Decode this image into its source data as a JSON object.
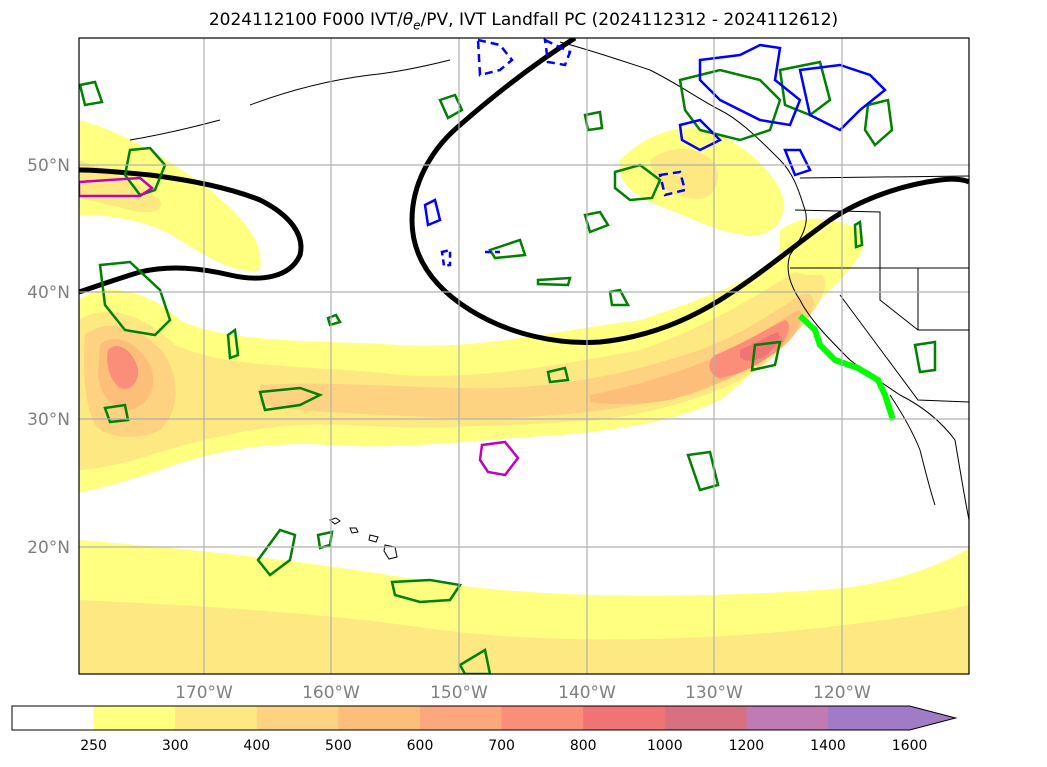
{
  "title": {
    "prefix": "2024112100 F000 IVT/",
    "theta": "θ",
    "theta_sub": "e",
    "suffix": "/PV, IVT Landfall PC (2024112312 - 2024112612)"
  },
  "map": {
    "region": "North-East Pacific",
    "lon_labels": [
      "170°W",
      "160°W",
      "150°W",
      "140°W",
      "130°W",
      "120°W"
    ],
    "lat_labels": [
      "50°N",
      "40°N",
      "30°N",
      "20°N"
    ],
    "gridlines": true
  },
  "colorbar": {
    "tick_labels": [
      "250",
      "300",
      "400",
      "500",
      "600",
      "700",
      "800",
      "1000",
      "1200",
      "1400",
      "1600"
    ],
    "colors": [
      "#ffffff",
      "#ffff80",
      "#fde882",
      "#fdd280",
      "#fdbe7a",
      "#fda77c",
      "#fb8e78",
      "#f07474",
      "#d9707f",
      "#c07ab4",
      "#a07cc8"
    ],
    "extend": "max"
  },
  "overlays": {
    "landfall_path_color": "#00ff00",
    "positive_pv_color": "#008000",
    "negative_pv_color": "#0000ff",
    "theta_e_color": "#000000",
    "other_contour_color": "#c000c0"
  }
}
